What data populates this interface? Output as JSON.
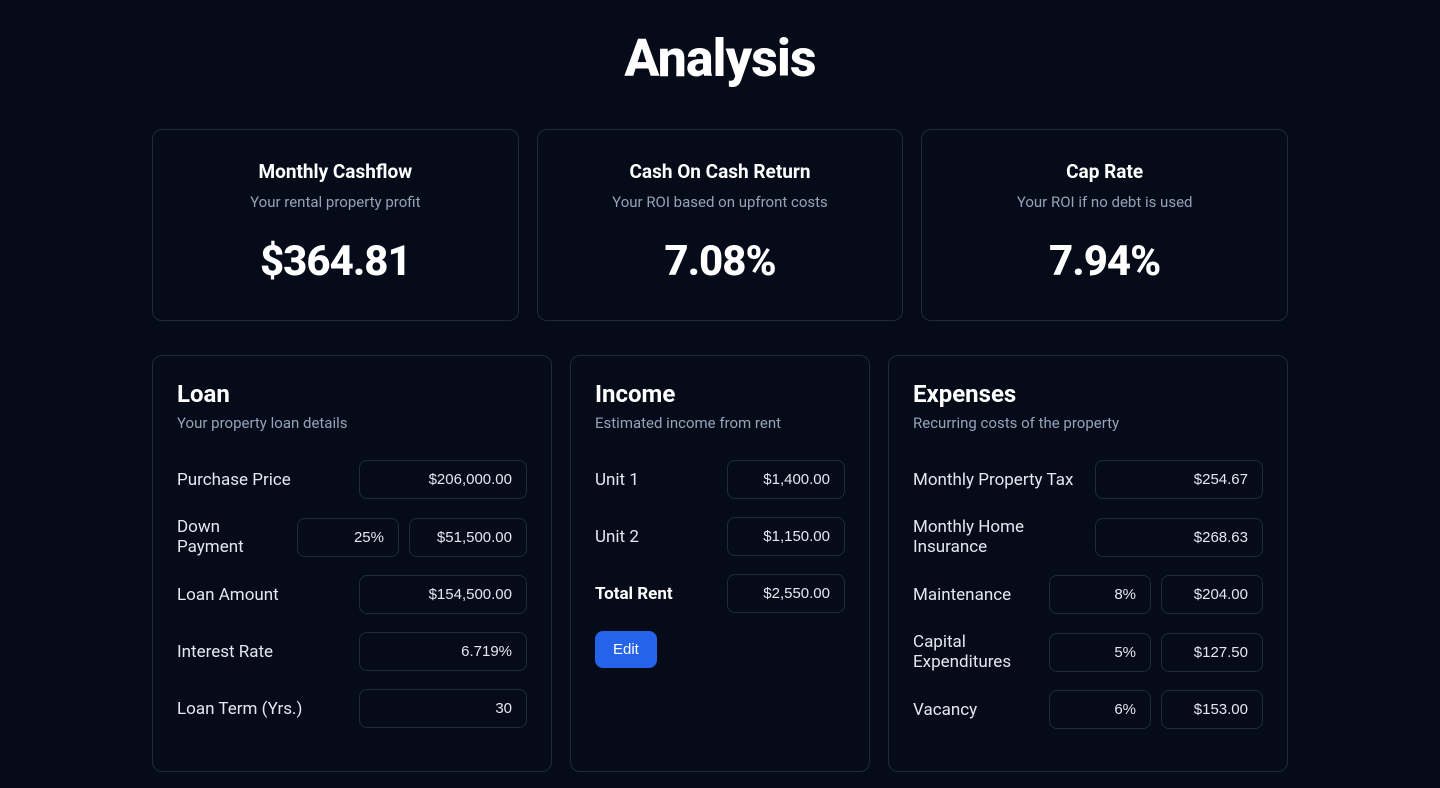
{
  "page": {
    "title": "Analysis"
  },
  "metrics": {
    "cashflow": {
      "title": "Monthly Cashflow",
      "sub": "Your rental property profit",
      "value": "$364.81"
    },
    "coc": {
      "title": "Cash On Cash Return",
      "sub": "Your ROI based on upfront costs",
      "value": "7.08%"
    },
    "cap": {
      "title": "Cap Rate",
      "sub": "Your ROI if no debt is used",
      "value": "7.94%"
    }
  },
  "loan": {
    "title": "Loan",
    "sub": "Your property loan details",
    "purchase_price": {
      "label": "Purchase Price",
      "value": "$206,000.00"
    },
    "down_payment": {
      "label": "Down Payment",
      "pct": "25%",
      "value": "$51,500.00"
    },
    "loan_amount": {
      "label": "Loan Amount",
      "value": "$154,500.00"
    },
    "interest_rate": {
      "label": "Interest Rate",
      "value": "6.719%"
    },
    "loan_term": {
      "label": "Loan Term (Yrs.)",
      "value": "30"
    }
  },
  "income": {
    "title": "Income",
    "sub": "Estimated income from rent",
    "unit1": {
      "label": "Unit 1",
      "value": "$1,400.00"
    },
    "unit2": {
      "label": "Unit 2",
      "value": "$1,150.00"
    },
    "total": {
      "label": "Total Rent",
      "value": "$2,550.00"
    },
    "edit_label": "Edit"
  },
  "expenses": {
    "title": "Expenses",
    "sub": "Recurring costs of the property",
    "property_tax": {
      "label": "Monthly Property Tax",
      "value": "$254.67"
    },
    "home_insurance": {
      "label": "Monthly Home Insurance",
      "value": "$268.63"
    },
    "maintenance": {
      "label": "Maintenance",
      "pct": "8%",
      "value": "$204.00"
    },
    "capex": {
      "label": "Capital Expenditures",
      "pct": "5%",
      "value": "$127.50"
    },
    "vacancy": {
      "label": "Vacancy",
      "pct": "6%",
      "value": "$153.00"
    }
  },
  "colors": {
    "background": "#050b18",
    "border": "#1e2a3d",
    "text_muted": "#94a3b8",
    "text": "#e2e8f0",
    "accent": "#2563eb"
  }
}
